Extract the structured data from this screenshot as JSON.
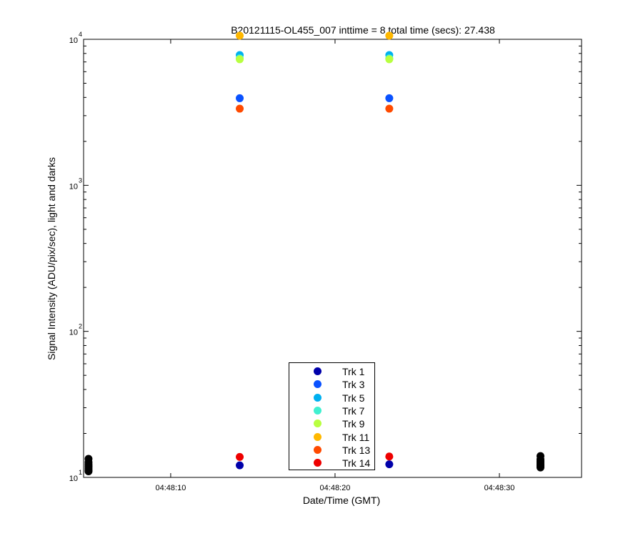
{
  "chart_data": {
    "type": "scatter",
    "title": "B20121115-OL455_007 inttime = 8 total time (secs): 27.438",
    "xlabel": "Date/Time (GMT)",
    "ylabel": "Signal Intensity (ADU/pix/sec), light and darks",
    "yscale": "log",
    "ylim": [
      10,
      10000
    ],
    "xlim": [
      "04:48:04.7",
      "04:48:35.0"
    ],
    "x_ticks": [
      "04:48:10",
      "04:48:20",
      "04:48:30"
    ],
    "y_ticks": [
      {
        "value": 10,
        "base": "10",
        "exp": "1"
      },
      {
        "value": 100,
        "base": "10",
        "exp": "2"
      },
      {
        "value": 1000,
        "base": "10",
        "exp": "3"
      },
      {
        "value": 10000,
        "base": "10",
        "exp": "4"
      }
    ],
    "grid": false,
    "legend_position": "bottom-center",
    "series": [
      {
        "name": "Trk 1",
        "color": "#0000aa",
        "points": [
          [
            "04:48:14.2",
            12.1
          ],
          [
            "04:48:23.3",
            12.3
          ]
        ]
      },
      {
        "name": "Trk 3",
        "color": "#0a52ff",
        "points": [
          [
            "04:48:14.2",
            3950
          ],
          [
            "04:48:23.3",
            3950
          ]
        ]
      },
      {
        "name": "Trk 5",
        "color": "#00b0f0",
        "points": [
          [
            "04:48:14.2",
            7800
          ],
          [
            "04:48:23.3",
            7800
          ]
        ]
      },
      {
        "name": "Trk 7",
        "color": "#40f0d0",
        "points": [
          [
            "04:48:14.2",
            7400
          ],
          [
            "04:48:23.3",
            7400
          ]
        ]
      },
      {
        "name": "Trk 9",
        "color": "#b8ff40",
        "points": [
          [
            "04:48:14.2",
            7300
          ],
          [
            "04:48:23.3",
            7300
          ]
        ]
      },
      {
        "name": "Trk 11",
        "color": "#ffb800",
        "points": [
          [
            "04:48:14.2",
            10600
          ],
          [
            "04:48:23.3",
            10600
          ]
        ]
      },
      {
        "name": "Trk 13",
        "color": "#ff4a00",
        "points": [
          [
            "04:48:14.2",
            3350
          ],
          [
            "04:48:23.3",
            3350
          ]
        ]
      },
      {
        "name": "Trk 14",
        "color": "#ee0000",
        "points": [
          [
            "04:48:14.2",
            13.8
          ],
          [
            "04:48:23.3",
            13.9
          ]
        ]
      },
      {
        "name": "",
        "color": "#000000",
        "points": [
          [
            "04:48:05.0",
            13.4
          ],
          [
            "04:48:05.0",
            12.7
          ],
          [
            "04:48:05.0",
            12.3
          ],
          [
            "04:48:05.0",
            12.0
          ],
          [
            "04:48:05.0",
            11.8
          ],
          [
            "04:48:05.0",
            11.5
          ],
          [
            "04:48:05.0",
            11.2
          ],
          [
            "04:48:05.0",
            11.0
          ],
          [
            "04:48:32.5",
            14.0
          ],
          [
            "04:48:32.5",
            13.3
          ],
          [
            "04:48:32.5",
            12.9
          ],
          [
            "04:48:32.5",
            12.6
          ],
          [
            "04:48:32.5",
            12.3
          ],
          [
            "04:48:32.5",
            12.1
          ],
          [
            "04:48:32.5",
            11.9
          ],
          [
            "04:48:32.5",
            11.7
          ]
        ]
      }
    ]
  }
}
